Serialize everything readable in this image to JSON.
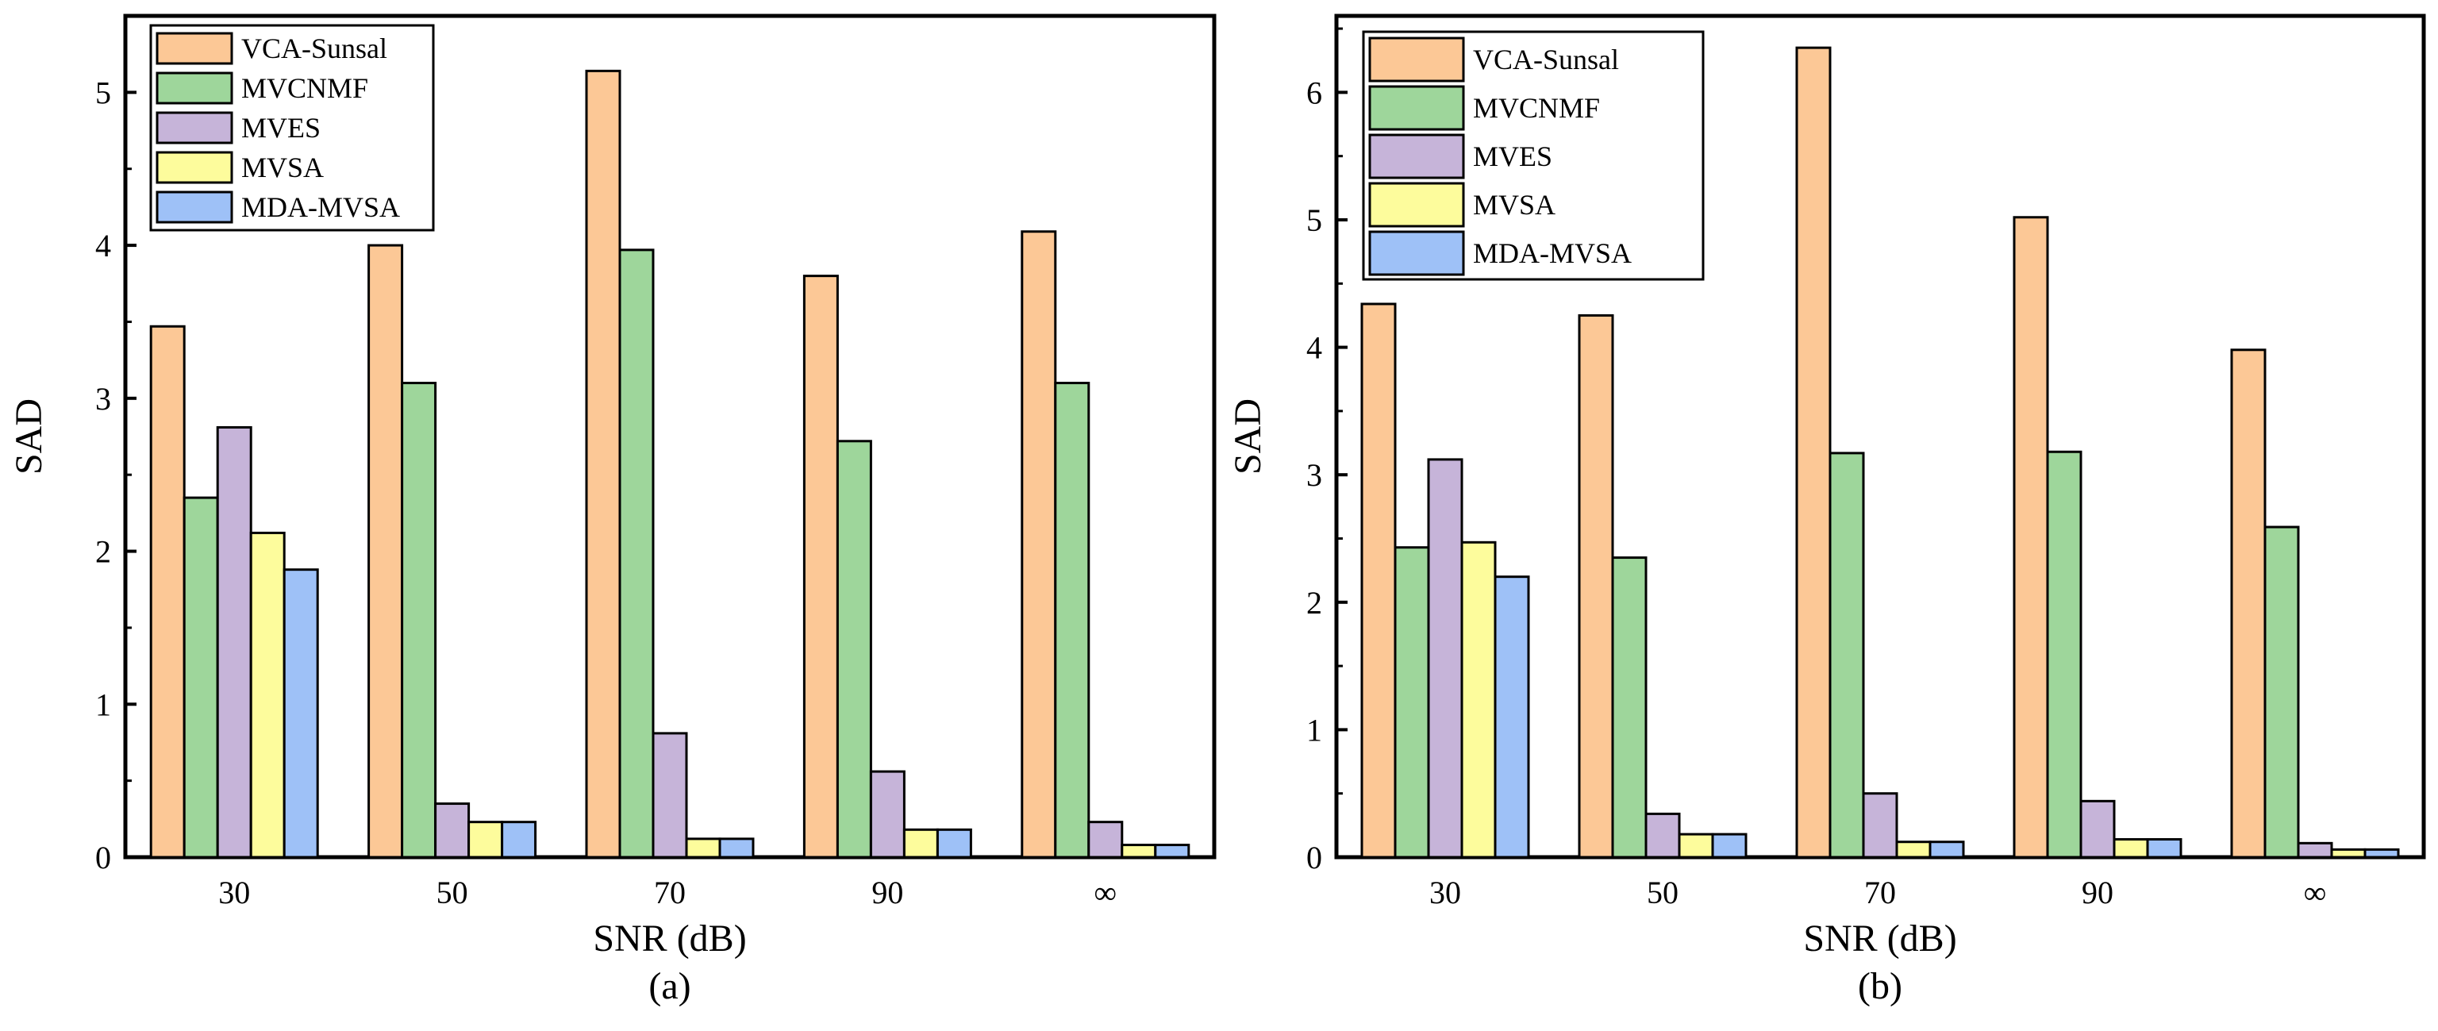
{
  "legend_colors": {
    "VCA-Sunsal": "#FCC896",
    "MVCNMF": "#9ED69B",
    "MVES": "#C6B4D9",
    "MVSA": "#FDFC9C",
    "MDA-MVSA": "#9EC1F7"
  },
  "chart_data": [
    {
      "type": "bar",
      "panel_label": "(a)",
      "xlabel": "SNR (dB)",
      "ylabel": "SAD",
      "ylim": [
        0,
        5.5
      ],
      "yticks": [
        0,
        1,
        2,
        3,
        4,
        5
      ],
      "categories": [
        "30",
        "50",
        "70",
        "90",
        "∞"
      ],
      "legend_position": "top-left",
      "series": [
        {
          "name": "VCA-Sunsal",
          "values": [
            3.47,
            4.0,
            5.14,
            3.8,
            4.09
          ]
        },
        {
          "name": "MVCNMF",
          "values": [
            2.35,
            3.1,
            3.97,
            2.72,
            3.1
          ]
        },
        {
          "name": "MVES",
          "values": [
            2.81,
            0.35,
            0.81,
            0.56,
            0.23
          ]
        },
        {
          "name": "MVSA",
          "values": [
            2.12,
            0.23,
            0.12,
            0.18,
            0.08
          ]
        },
        {
          "name": "MDA-MVSA",
          "values": [
            1.88,
            0.23,
            0.12,
            0.18,
            0.08
          ]
        }
      ]
    },
    {
      "type": "bar",
      "panel_label": "(b)",
      "xlabel": "SNR (dB)",
      "ylabel": "SAD",
      "ylim": [
        0,
        6.6
      ],
      "yticks": [
        0,
        1,
        2,
        3,
        4,
        5,
        6
      ],
      "categories": [
        "30",
        "50",
        "70",
        "90",
        "∞"
      ],
      "legend_position": "top-left",
      "series": [
        {
          "name": "VCA-Sunsal",
          "values": [
            4.34,
            4.25,
            6.35,
            5.02,
            3.98
          ]
        },
        {
          "name": "MVCNMF",
          "values": [
            2.43,
            2.35,
            3.17,
            3.18,
            2.59
          ]
        },
        {
          "name": "MVES",
          "values": [
            3.12,
            0.34,
            0.5,
            0.44,
            0.11
          ]
        },
        {
          "name": "MVSA",
          "values": [
            2.47,
            0.18,
            0.12,
            0.14,
            0.06
          ]
        },
        {
          "name": "MDA-MVSA",
          "values": [
            2.2,
            0.18,
            0.12,
            0.14,
            0.06
          ]
        }
      ]
    }
  ]
}
